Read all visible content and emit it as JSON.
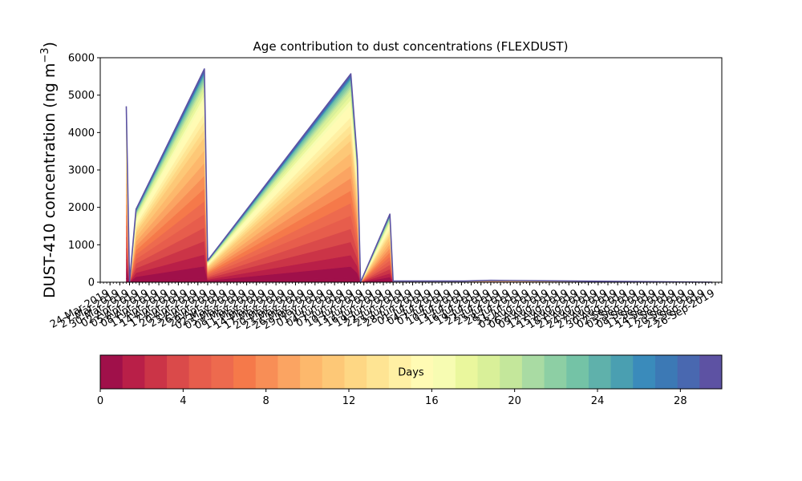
{
  "chart_data": {
    "type": "area",
    "title": "Age contribution to dust concentrations (FLEXDUST)",
    "ylabel_prefix": "DUST-410 concentration (ng m",
    "ylabel_sup": "−3",
    "ylabel_suffix": ")",
    "ylim": [
      0,
      6000
    ],
    "yticks": [
      0,
      1000,
      2000,
      3000,
      4000,
      5000,
      6000
    ],
    "xlim": [
      "2019-03-21",
      "2019-09-28"
    ],
    "xtick_start": "2019-03-24",
    "xtick_step_days": 3,
    "xtick_count": 63,
    "xtick_labels": [
      "24-Mar-2019",
      "27-Mar-2019",
      "30-Mar-2019",
      "02-Apr-2019",
      "05-Apr-2019",
      "08-Apr-2019",
      "11-Apr-2019",
      "14-Apr-2019",
      "17-Apr-2019",
      "20-Apr-2019",
      "23-Apr-2019",
      "26-Apr-2019",
      "29-Apr-2019",
      "02-May-2019",
      "05-May-2019",
      "08-May-2019",
      "11-May-2019",
      "14-May-2019",
      "17-May-2019",
      "20-May-2019",
      "23-May-2019",
      "26-May-2019",
      "29-May-2019",
      "01-Jun-2019",
      "04-Jun-2019",
      "07-Jun-2019",
      "10-Jun-2019",
      "13-Jun-2019",
      "16-Jun-2019",
      "19-Jun-2019",
      "22-Jun-2019",
      "25-Jun-2019",
      "28-Jun-2019",
      "01-Jul-2019",
      "04-Jul-2019",
      "07-Jul-2019",
      "10-Jul-2019",
      "13-Jul-2019",
      "16-Jul-2019",
      "19-Jul-2019",
      "22-Jul-2019",
      "25-Jul-2019",
      "28-Jul-2019",
      "31-Jul-2019",
      "03-Aug-2019",
      "06-Aug-2019",
      "09-Aug-2019",
      "12-Aug-2019",
      "15-Aug-2019",
      "18-Aug-2019",
      "21-Aug-2019",
      "24-Aug-2019",
      "27-Aug-2019",
      "30-Aug-2019",
      "02-Sep-2019",
      "05-Sep-2019",
      "08-Sep-2019",
      "11-Sep-2019",
      "14-Sep-2019",
      "17-Sep-2019",
      "20-Sep-2019",
      "23-Sep-2019",
      "26-Sep-2019"
    ],
    "x": [
      "2019-03-29",
      "2019-03-30",
      "2019-04-01",
      "2019-04-22",
      "2019-04-23",
      "2019-06-06",
      "2019-06-08",
      "2019-06-09",
      "2019-06-18",
      "2019-06-19",
      "2019-07-11",
      "2019-07-19",
      "2019-09-25"
    ],
    "totals": [
      4700,
      0,
      1950,
      5700,
      580,
      5570,
      3270,
      0,
      1820,
      30,
      30,
      50,
      0
    ],
    "shape": {
      "count": 30,
      "peak_day_fraction": 0.5,
      "breakpoints": [
        [
          0,
          0
        ],
        [
          1,
          0.02
        ],
        [
          3,
          0.13
        ],
        [
          6,
          0.32
        ],
        [
          9,
          0.5
        ],
        [
          12,
          0.68
        ],
        [
          16,
          0.83
        ],
        [
          20,
          0.92
        ],
        [
          24,
          0.97
        ],
        [
          28,
          0.99
        ],
        [
          30,
          1
        ]
      ]
    },
    "colorbar": {
      "label": "Days",
      "ticks": [
        0,
        4,
        8,
        12,
        16,
        20,
        24,
        28
      ],
      "range": [
        0,
        30
      ],
      "colors": [
        "#a0104a",
        "#b91f48",
        "#cb3447",
        "#da4a4a",
        "#e75d4c",
        "#ed6a4e",
        "#f5794a",
        "#f88e56",
        "#fba462",
        "#fdb86c",
        "#fdc877",
        "#fed784",
        "#fee493",
        "#fff0a4",
        "#fffbb4",
        "#f7fcb2",
        "#eaf79d",
        "#d9f099",
        "#c4e79b",
        "#a9dba3",
        "#8dcfa4",
        "#74c3a6",
        "#5fb1ab",
        "#4a9fb1",
        "#3a8bbb",
        "#3c79b5",
        "#4968b0",
        "#5d52a3"
      ]
    }
  }
}
